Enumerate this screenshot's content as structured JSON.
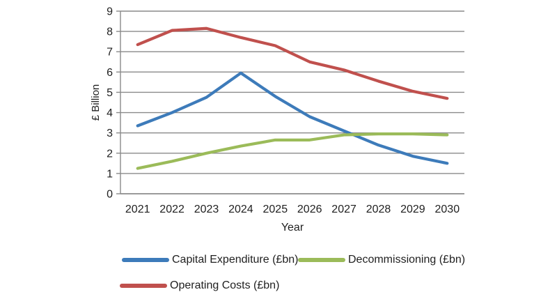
{
  "chart_data": {
    "type": "line",
    "title": "",
    "xlabel": "Year",
    "ylabel": "£ Billion",
    "ylim": [
      0,
      9
    ],
    "y_tick_interval": 1,
    "y_ticks": [
      "0",
      "1",
      "2",
      "3",
      "4",
      "5",
      "6",
      "7",
      "8",
      "9"
    ],
    "grid": true,
    "legend_position": "bottom",
    "categories": [
      "2021",
      "2022",
      "2023",
      "2024",
      "2025",
      "2026",
      "2027",
      "2028",
      "2029",
      "2030"
    ],
    "series": [
      {
        "name": "Capital Expenditure (£bn)",
        "color": "#3d7bba",
        "values": [
          3.35,
          4.0,
          4.75,
          5.95,
          4.8,
          3.8,
          3.1,
          2.4,
          1.85,
          1.5
        ]
      },
      {
        "name": "Decommissioning (£bn)",
        "color": "#9bbb59",
        "values": [
          1.25,
          1.6,
          2.0,
          2.35,
          2.65,
          2.65,
          2.9,
          2.95,
          2.95,
          2.9
        ]
      },
      {
        "name": "Operating Costs (£bn)",
        "color": "#c0504d",
        "values": [
          7.35,
          8.05,
          8.15,
          7.7,
          7.3,
          6.5,
          6.1,
          5.55,
          5.05,
          4.7
        ]
      }
    ]
  },
  "colors": {
    "gridline": "#8a8a8a",
    "axis_line": "#8a8a8a",
    "bottom_axis": "#9a9a9a",
    "text": "#1f1f1f",
    "background": "#ffffff"
  }
}
